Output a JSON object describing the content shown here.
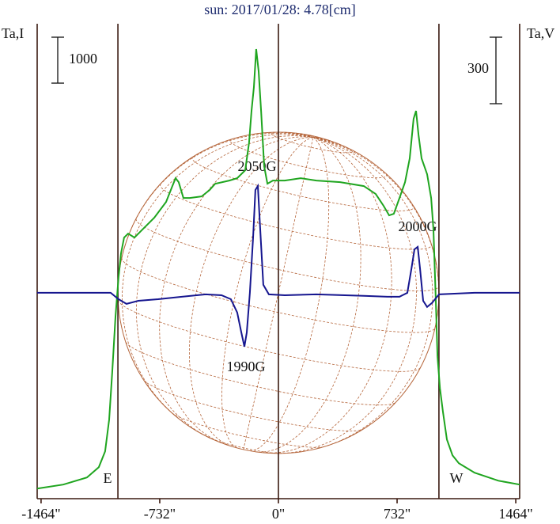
{
  "chart_data": {
    "type": "line",
    "title": "sun: 2017/01/28: 4.78[cm]",
    "y_label": "Ta,I",
    "y2_label": "Ta,V",
    "xlim": [
      -1488,
      1488
    ],
    "xticks": [
      {
        "value": -1464,
        "label": "-1464\""
      },
      {
        "value": -732,
        "label": "-732\""
      },
      {
        "value": 0,
        "label": "0\""
      },
      {
        "value": 732,
        "label": "732\""
      },
      {
        "value": 1464,
        "label": "1464\""
      }
    ],
    "ylim": [
      -220,
      10120
    ],
    "y2lim": [
      -929,
      1214
    ],
    "scale_i": 1000,
    "scale_v": 300,
    "solar_radius": 990,
    "disk_color": "#b5653a",
    "annotations": [
      "2050G",
      "2000G",
      "1990G",
      "E",
      "W"
    ],
    "series": [
      {
        "color": "#1fa51f",
        "axis": "y",
        "x": [
          -1488,
          -1327,
          -1181,
          -1108,
          -1069,
          -1044,
          -1025,
          -1005,
          -986,
          -971,
          -952,
          -927,
          -888,
          -839,
          -766,
          -693,
          -654,
          -634,
          -615,
          -586,
          -547,
          -473,
          -425,
          -390,
          -303,
          -254,
          -205,
          -181,
          -166,
          -151,
          -137,
          -122,
          -107,
          -88,
          -68,
          -34,
          39,
          137,
          234,
          381,
          527,
          600,
          649,
          683,
          712,
          747,
          781,
          810,
          834,
          849,
          864,
          883,
          917,
          942,
          956,
          971,
          981,
          996,
          1015,
          1039,
          1074,
          1113,
          1210,
          1357,
          1488
        ],
        "values": [
          0,
          86,
          241,
          465,
          810,
          1500,
          2534,
          3741,
          4603,
          5120,
          5465,
          5551,
          5465,
          5637,
          5896,
          6241,
          6586,
          6758,
          6672,
          6327,
          6327,
          6362,
          6500,
          6637,
          6706,
          6758,
          6930,
          7534,
          8223,
          8741,
          9568,
          9085,
          8223,
          7017,
          6637,
          6706,
          6706,
          6758,
          6706,
          6672,
          6586,
          6413,
          6155,
          5948,
          5982,
          6327,
          6672,
          7189,
          8051,
          8223,
          7706,
          7189,
          6844,
          6327,
          5637,
          4086,
          2879,
          2189,
          1672,
          1069,
          724,
          552,
          345,
          172,
          86
        ]
      },
      {
        "color": "#16168f",
        "axis": "y2",
        "x": [
          -1488,
          -1035,
          -986,
          -937,
          -864,
          -742,
          -595,
          -449,
          -351,
          -293,
          -254,
          -229,
          -210,
          -195,
          -176,
          -156,
          -142,
          -127,
          -112,
          -93,
          -59,
          39,
          234,
          527,
          673,
          747,
          795,
          820,
          839,
          859,
          874,
          893,
          917,
          947,
          991,
          1210,
          1488
        ],
        "values": [
          0,
          0,
          -29,
          -50,
          -36,
          -29,
          -18,
          -7,
          -11,
          -29,
          -89,
          -179,
          -243,
          -179,
          0,
          250,
          464,
          482,
          286,
          36,
          -7,
          -11,
          -7,
          -14,
          -18,
          -18,
          0,
          107,
          196,
          207,
          107,
          -36,
          -64,
          -46,
          -7,
          0,
          0
        ]
      }
    ]
  }
}
